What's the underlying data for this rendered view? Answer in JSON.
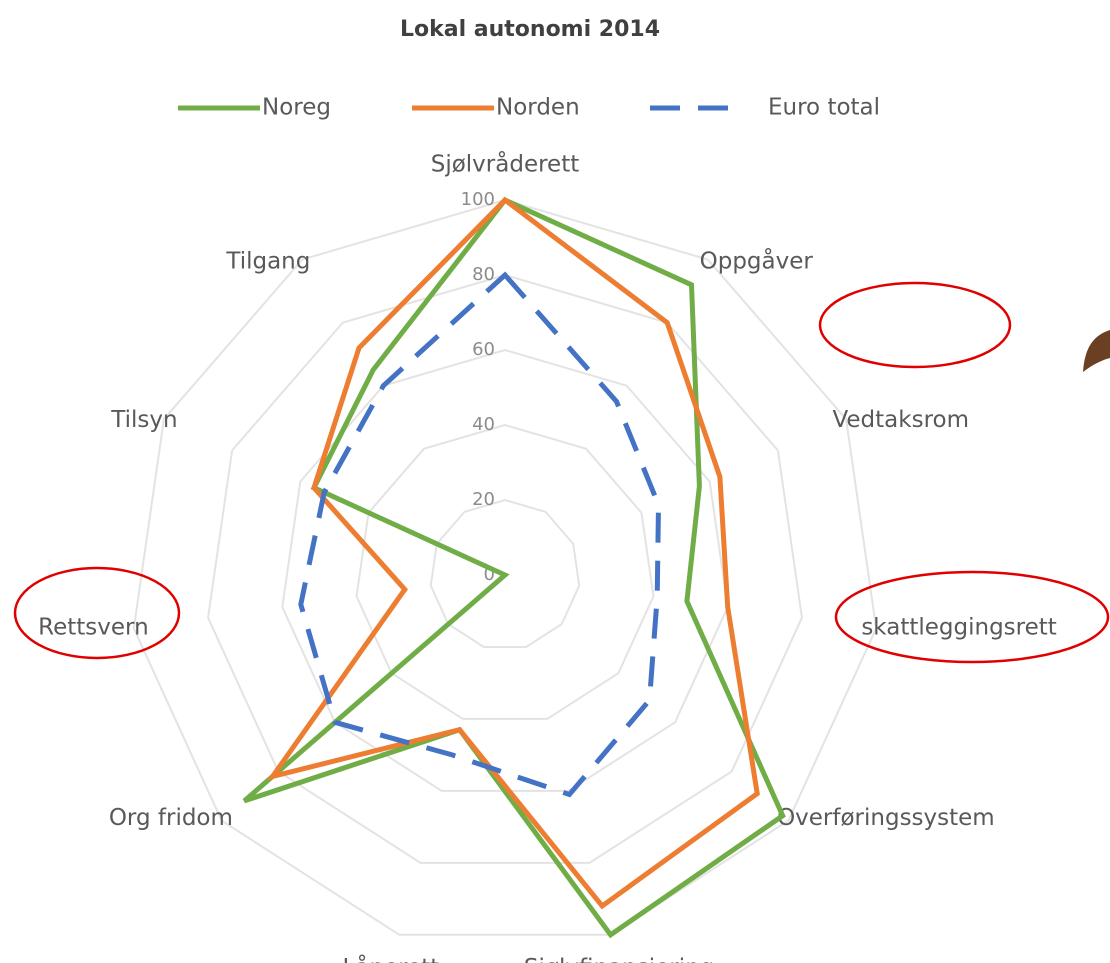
{
  "chart_data": {
    "type": "radar",
    "title": "Lokal autonomi 2014",
    "categories": [
      "Sjølvråderett",
      "Oppgåver",
      "Vedtaksrom",
      "skattleggingsrett",
      "Overføringssystem",
      "Sjølvfinansiering",
      "Lånerett",
      "Org fridom",
      "Rettsvern",
      "Tilsyn",
      "Tilgang"
    ],
    "series": [
      {
        "name": "Noreg",
        "color": "#70ad47",
        "values": [
          100,
          92,
          57,
          49,
          98,
          100,
          43,
          92,
          0,
          56,
          65
        ]
      },
      {
        "name": "Norden",
        "color": "#ed7d31",
        "values": [
          100,
          80,
          63,
          60,
          89,
          92,
          43,
          82,
          27,
          56,
          72
        ]
      },
      {
        "name": "Euro total",
        "color": "#4472c4",
        "dashed": true,
        "values": [
          80,
          55,
          45,
          41,
          51,
          61,
          50,
          60,
          55,
          53,
          60
        ]
      }
    ],
    "rlim": [
      0,
      100
    ],
    "rticks": [
      0,
      20,
      40,
      60,
      80,
      100
    ],
    "grid": true
  }
}
